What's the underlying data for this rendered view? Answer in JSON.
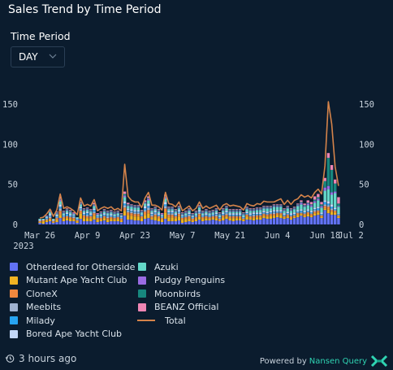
{
  "title": "Sales Trend by Time Period",
  "time_period": {
    "label": "Time Period",
    "selected": "DAY"
  },
  "footer": {
    "updated": "3 hours ago",
    "powered_prefix": "Powered by",
    "powered_brand": "Nansen Query"
  },
  "icons": {
    "updated": "clock-history-icon",
    "dropdown": "chevron-down-icon",
    "brand": "nansen-logo-icon"
  },
  "colors": {
    "background": "#0b1c2e",
    "Otherdeed for Otherside": "#6272f5",
    "Mutant Ape Yacht Club": "#f0b323",
    "CloneX": "#f0883e",
    "Meebits": "#9fb2d1",
    "Milady": "#27a4f2",
    "Bored Ape Yacht Club": "#c3d7f7",
    "Azuki": "#64d8c9",
    "Pudgy Penguins": "#9a6be3",
    "Moonbirds": "#17877e",
    "BEANZ Official": "#ef86b4",
    "Total": "#d4834a"
  },
  "chart_data": {
    "type": "bar",
    "stacked": true,
    "total_overlay": "line",
    "x_start": "2023-03-26",
    "x_ticks": [
      "Mar 26",
      "Apr 9",
      "Apr 23",
      "May 7",
      "May 21",
      "Jun 4",
      "Jun 18",
      "Jul 2"
    ],
    "x_year": "2023",
    "y_ticks": [
      0,
      50,
      100,
      150
    ],
    "ylim": [
      0,
      160
    ],
    "y_axis_right": true,
    "legend_position": "bottom-left",
    "legend_columns": [
      [
        "Otherdeed for Otherside",
        "Mutant Ape Yacht Club",
        "CloneX",
        "Meebits",
        "Milady",
        "Bored Ape Yacht Club"
      ],
      [
        "Azuki",
        "Pudgy Penguins",
        "Moonbirds",
        "BEANZ Official",
        "Total"
      ]
    ],
    "series": [
      {
        "name": "Otherdeed for Otherside",
        "values": [
          2,
          1,
          3,
          4,
          2,
          3,
          8,
          4,
          5,
          4,
          4,
          2,
          7,
          4,
          4,
          4,
          6,
          3,
          4,
          5,
          3,
          4,
          4,
          4,
          3,
          11,
          6,
          6,
          5,
          5,
          4,
          7,
          8,
          6,
          5,
          4,
          3,
          7,
          4,
          4,
          4,
          5,
          2,
          3,
          4,
          3,
          4,
          6,
          4,
          5,
          5,
          6,
          5,
          4,
          5,
          7,
          5,
          4,
          5,
          5,
          4,
          6,
          6,
          5,
          6,
          6,
          8,
          7,
          7,
          8,
          9,
          8,
          7,
          8,
          6,
          8,
          9,
          11,
          9,
          10,
          9,
          11,
          12,
          8,
          18,
          14,
          12,
          12,
          8
        ]
      },
      {
        "name": "Mutant Ape Yacht Club",
        "values": [
          1,
          3,
          2,
          2,
          1,
          3,
          4,
          3,
          3,
          3,
          2,
          2,
          7,
          4,
          4,
          4,
          5,
          3,
          2,
          3,
          3,
          3,
          2,
          3,
          2,
          6,
          6,
          5,
          5,
          5,
          4,
          5,
          6,
          2,
          5,
          4,
          3,
          8,
          5,
          5,
          4,
          5,
          4,
          4,
          3,
          2,
          3,
          4,
          3,
          3,
          2,
          2,
          3,
          1,
          4,
          3,
          3,
          4,
          3,
          3,
          2,
          4,
          2,
          3,
          3,
          3,
          3,
          3,
          4,
          3,
          3,
          4,
          2,
          2,
          2,
          2,
          3,
          2,
          2,
          3,
          2,
          3,
          3,
          2,
          2,
          5,
          4,
          3,
          2
        ]
      },
      {
        "name": "CloneX",
        "values": [
          1,
          1,
          1,
          2,
          1,
          2,
          5,
          2,
          2,
          2,
          2,
          1,
          3,
          3,
          2,
          2,
          3,
          2,
          2,
          2,
          2,
          2,
          2,
          2,
          2,
          4,
          3,
          3,
          3,
          3,
          2,
          4,
          4,
          2,
          2,
          2,
          2,
          5,
          3,
          3,
          2,
          3,
          2,
          2,
          3,
          2,
          2,
          3,
          2,
          2,
          2,
          2,
          2,
          2,
          2,
          2,
          2,
          2,
          2,
          2,
          1,
          2,
          2,
          2,
          2,
          2,
          2,
          2,
          2,
          2,
          2,
          2,
          1,
          2,
          2,
          1,
          2,
          1,
          2,
          2,
          2,
          2,
          2,
          1,
          3,
          3,
          2,
          2,
          1
        ]
      },
      {
        "name": "Meebits",
        "values": [
          1,
          0,
          1,
          2,
          1,
          1,
          3,
          1,
          1,
          1,
          2,
          1,
          2,
          1,
          2,
          1,
          2,
          1,
          1,
          1,
          2,
          1,
          1,
          1,
          1,
          3,
          2,
          2,
          2,
          2,
          1,
          2,
          3,
          2,
          2,
          1,
          1,
          3,
          2,
          2,
          1,
          2,
          1,
          1,
          2,
          1,
          1,
          2,
          1,
          1,
          1,
          1,
          2,
          1,
          1,
          2,
          1,
          1,
          1,
          1,
          1,
          1,
          1,
          2,
          1,
          1,
          1,
          1,
          1,
          2,
          1,
          1,
          1,
          1,
          1,
          1,
          1,
          1,
          1,
          1,
          1,
          2,
          1,
          1,
          2,
          2,
          2,
          1,
          1
        ]
      },
      {
        "name": "Milady",
        "values": [
          0,
          0,
          1,
          1,
          0,
          1,
          2,
          1,
          2,
          1,
          1,
          1,
          1,
          1,
          2,
          1,
          2,
          1,
          1,
          1,
          1,
          1,
          1,
          1,
          1,
          2,
          1,
          1,
          1,
          1,
          1,
          2,
          2,
          1,
          1,
          1,
          1,
          2,
          1,
          1,
          1,
          1,
          1,
          1,
          1,
          1,
          1,
          1,
          1,
          1,
          1,
          1,
          1,
          1,
          1,
          1,
          1,
          1,
          1,
          1,
          1,
          1,
          1,
          1,
          1,
          1,
          1,
          1,
          1,
          1,
          1,
          1,
          1,
          1,
          1,
          1,
          1,
          2,
          1,
          1,
          1,
          1,
          2,
          1,
          3,
          2,
          2,
          1,
          1
        ]
      },
      {
        "name": "Bored Ape Yacht Club",
        "values": [
          1,
          1,
          1,
          2,
          1,
          2,
          3,
          1,
          2,
          2,
          1,
          1,
          2,
          2,
          2,
          2,
          2,
          1,
          1,
          2,
          1,
          2,
          1,
          1,
          1,
          3,
          2,
          2,
          2,
          2,
          1,
          3,
          3,
          2,
          2,
          2,
          1,
          3,
          2,
          2,
          2,
          2,
          1,
          1,
          2,
          1,
          1,
          2,
          1,
          2,
          1,
          1,
          2,
          1,
          2,
          2,
          2,
          2,
          2,
          2,
          1,
          2,
          2,
          2,
          2,
          2,
          2,
          2,
          2,
          2,
          2,
          2,
          2,
          2,
          2,
          2,
          2,
          2,
          2,
          2,
          2,
          2,
          2,
          2,
          2,
          3,
          3,
          2,
          1
        ]
      },
      {
        "name": "Azuki",
        "values": [
          1,
          1,
          1,
          2,
          1,
          1,
          4,
          2,
          2,
          2,
          1,
          1,
          3,
          2,
          2,
          2,
          3,
          1,
          2,
          2,
          2,
          2,
          2,
          2,
          1,
          5,
          3,
          3,
          3,
          3,
          2,
          3,
          4,
          2,
          2,
          2,
          1,
          4,
          2,
          2,
          2,
          2,
          1,
          2,
          2,
          1,
          2,
          3,
          2,
          2,
          2,
          2,
          2,
          2,
          2,
          3,
          2,
          2,
          2,
          2,
          2,
          3,
          3,
          2,
          3,
          3,
          3,
          4,
          3,
          4,
          4,
          4,
          3,
          4,
          3,
          4,
          5,
          6,
          5,
          5,
          5,
          6,
          8,
          6,
          12,
          15,
          12,
          18,
          8
        ]
      },
      {
        "name": "Pudgy Penguins",
        "values": [
          0,
          0,
          1,
          1,
          0,
          1,
          2,
          1,
          1,
          1,
          1,
          0,
          1,
          1,
          1,
          1,
          1,
          1,
          1,
          1,
          1,
          1,
          1,
          1,
          1,
          2,
          1,
          1,
          1,
          1,
          1,
          1,
          2,
          1,
          1,
          1,
          1,
          2,
          1,
          1,
          1,
          1,
          1,
          1,
          1,
          1,
          1,
          1,
          1,
          1,
          1,
          1,
          1,
          1,
          1,
          1,
          1,
          1,
          1,
          1,
          1,
          1,
          1,
          1,
          1,
          1,
          1,
          1,
          1,
          1,
          1,
          1,
          1,
          1,
          1,
          1,
          1,
          2,
          1,
          2,
          2,
          2,
          2,
          2,
          4,
          4,
          3,
          2,
          1
        ]
      },
      {
        "name": "Moonbirds",
        "values": [
          0,
          0,
          0,
          1,
          0,
          1,
          1,
          1,
          1,
          1,
          0,
          0,
          1,
          1,
          1,
          1,
          1,
          0,
          1,
          1,
          1,
          1,
          1,
          1,
          1,
          2,
          1,
          1,
          1,
          1,
          1,
          1,
          1,
          1,
          1,
          1,
          0,
          1,
          1,
          1,
          1,
          1,
          1,
          1,
          1,
          1,
          1,
          1,
          1,
          1,
          1,
          1,
          1,
          1,
          1,
          1,
          1,
          1,
          1,
          1,
          1,
          1,
          1,
          1,
          1,
          1,
          1,
          1,
          1,
          1,
          1,
          1,
          1,
          1,
          1,
          1,
          1,
          1,
          1,
          1,
          1,
          2,
          2,
          2,
          8,
          35,
          28,
          10,
          3
        ]
      },
      {
        "name": "BEANZ Official",
        "values": [
          0,
          0,
          0,
          1,
          0,
          1,
          2,
          1,
          1,
          1,
          1,
          0,
          1,
          1,
          1,
          1,
          2,
          1,
          1,
          1,
          1,
          1,
          1,
          1,
          1,
          3,
          2,
          1,
          1,
          1,
          1,
          2,
          2,
          1,
          1,
          1,
          1,
          2,
          1,
          1,
          1,
          1,
          1,
          1,
          1,
          1,
          1,
          1,
          1,
          1,
          1,
          1,
          1,
          1,
          1,
          1,
          1,
          1,
          1,
          1,
          1,
          1,
          1,
          1,
          1,
          1,
          1,
          1,
          1,
          1,
          1,
          1,
          1,
          1,
          1,
          1,
          1,
          2,
          2,
          3,
          3,
          4,
          4,
          3,
          4,
          6,
          6,
          5,
          8
        ]
      }
    ],
    "total": [
      8,
      9,
      13,
      19,
      10,
      18,
      38,
      20,
      22,
      20,
      17,
      12,
      33,
      23,
      25,
      23,
      31,
      17,
      20,
      22,
      20,
      22,
      18,
      20,
      17,
      75,
      35,
      30,
      28,
      28,
      21,
      33,
      40,
      24,
      24,
      22,
      18,
      40,
      26,
      25,
      22,
      28,
      17,
      20,
      23,
      17,
      20,
      28,
      20,
      23,
      20,
      22,
      24,
      18,
      24,
      26,
      23,
      24,
      23,
      22,
      18,
      26,
      24,
      23,
      26,
      25,
      29,
      28,
      28,
      28,
      30,
      32,
      25,
      30,
      25,
      30,
      32,
      37,
      34,
      36,
      33,
      40,
      44,
      38,
      73,
      153,
      125,
      72,
      48
    ]
  }
}
